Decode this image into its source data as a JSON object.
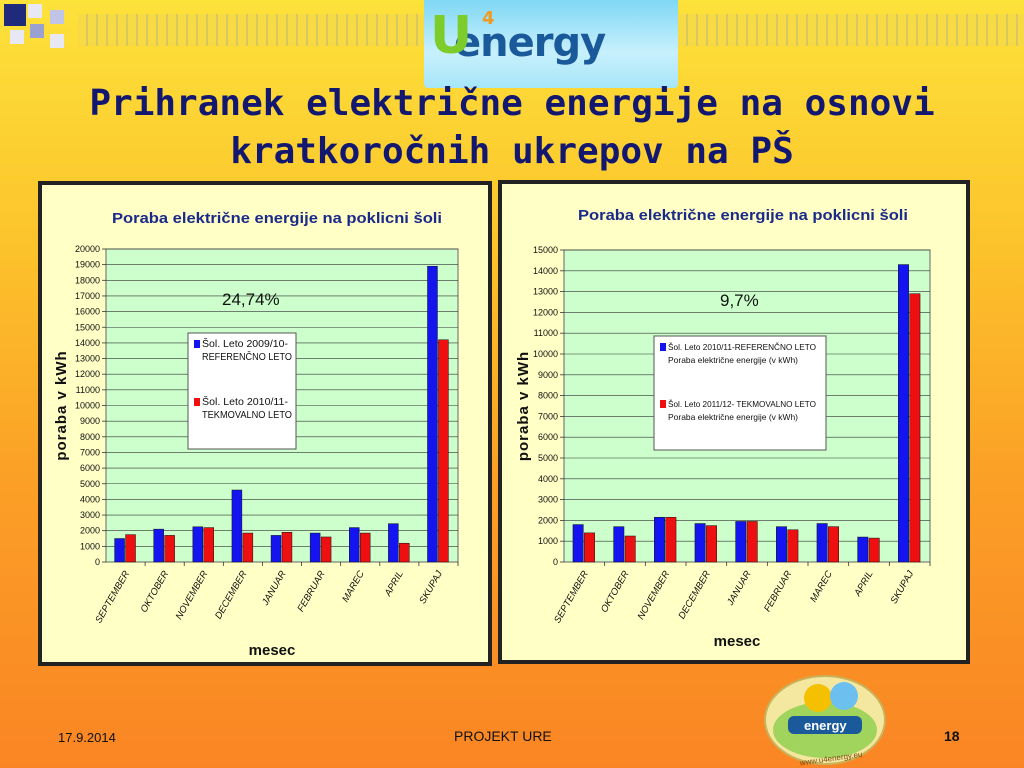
{
  "slide": {
    "title_line1": "Prihranek električne energije na osnovi",
    "title_line2": "kratkoročnih ukrepov na PŠ",
    "logo_text": "energy",
    "logo_letter_u": "U",
    "logo_superscript": "4",
    "footer_date": "17.9.2014",
    "footer_center": "PROJEKT URE",
    "page_number": "18",
    "bottom_logo_text": "energy",
    "bottom_logo_url": "www.u4energy.eu"
  },
  "colors": {
    "reference": "#1414f0",
    "test": "#ee1010",
    "plot_bg": "#ccffcc",
    "frame_bg": "#ffffc6",
    "title": "#121870"
  },
  "chart_data": [
    {
      "type": "bar",
      "title": "Poraba električne energije na poklicni šoli",
      "xlabel": "mesec",
      "ylabel": "poraba v kWh",
      "annotation": "24,74%",
      "ylim": [
        0,
        20000
      ],
      "ytick_step": 1000,
      "grid": true,
      "legend_placement": "center",
      "categories": [
        "SEPTEMBER",
        "OKTOBER",
        "NOVEMBER",
        "DECEMBER",
        "JANUAR",
        "FEBRUAR",
        "MAREC",
        "APRIL",
        "SKUPAJ"
      ],
      "series": [
        {
          "name": "Šol. Leto 2009/10-REFERENČNO LETO",
          "legend_lines": [
            "Šol. Leto 2009/10-",
            "REFERENČNO LETO"
          ],
          "values": [
            1500,
            2100,
            2250,
            4600,
            1700,
            1850,
            2200,
            2450,
            18900
          ]
        },
        {
          "name": "Šol. Leto 2010/11-TEKMOVALNO LETO",
          "legend_lines": [
            "Šol. Leto 2010/11-",
            "TEKMOVALNO LETO"
          ],
          "values": [
            1750,
            1700,
            2200,
            1850,
            1900,
            1600,
            1850,
            1200,
            14200
          ]
        }
      ]
    },
    {
      "type": "bar",
      "title": "Poraba električne energije na poklicni šoli",
      "xlabel": "mesec",
      "ylabel": "poraba v kWh",
      "annotation": "9,7%",
      "ylim": [
        0,
        15000
      ],
      "ytick_step": 1000,
      "grid": true,
      "legend_placement": "center",
      "categories": [
        "SEPTEMBER",
        "OKTOBER",
        "NOVEMBER",
        "DECEMBER",
        "JANUAR",
        "FEBRUAR",
        "MAREC",
        "APRIL",
        "SKUPAJ"
      ],
      "series": [
        {
          "name": "Šol. Leto 2010/11-REFERENČNO LETO Poraba električne energije (v kWh)",
          "legend_lines": [
            "Šol. Leto 2010/11-REFERENČNO LETO",
            "Poraba električne energije (v kWh)"
          ],
          "values": [
            1800,
            1700,
            2150,
            1850,
            1950,
            1700,
            1850,
            1200,
            14300
          ]
        },
        {
          "name": "Šol. Leto 2011/12- TEKMOVALNO LETO Poraba električne energije (v kWh)",
          "legend_lines": [
            "Šol. Leto 2011/12- TEKMOVALNO LETO",
            "Poraba električne energije (v kWh)"
          ],
          "values": [
            1400,
            1250,
            2150,
            1750,
            1950,
            1550,
            1700,
            1150,
            12900
          ]
        }
      ]
    }
  ]
}
